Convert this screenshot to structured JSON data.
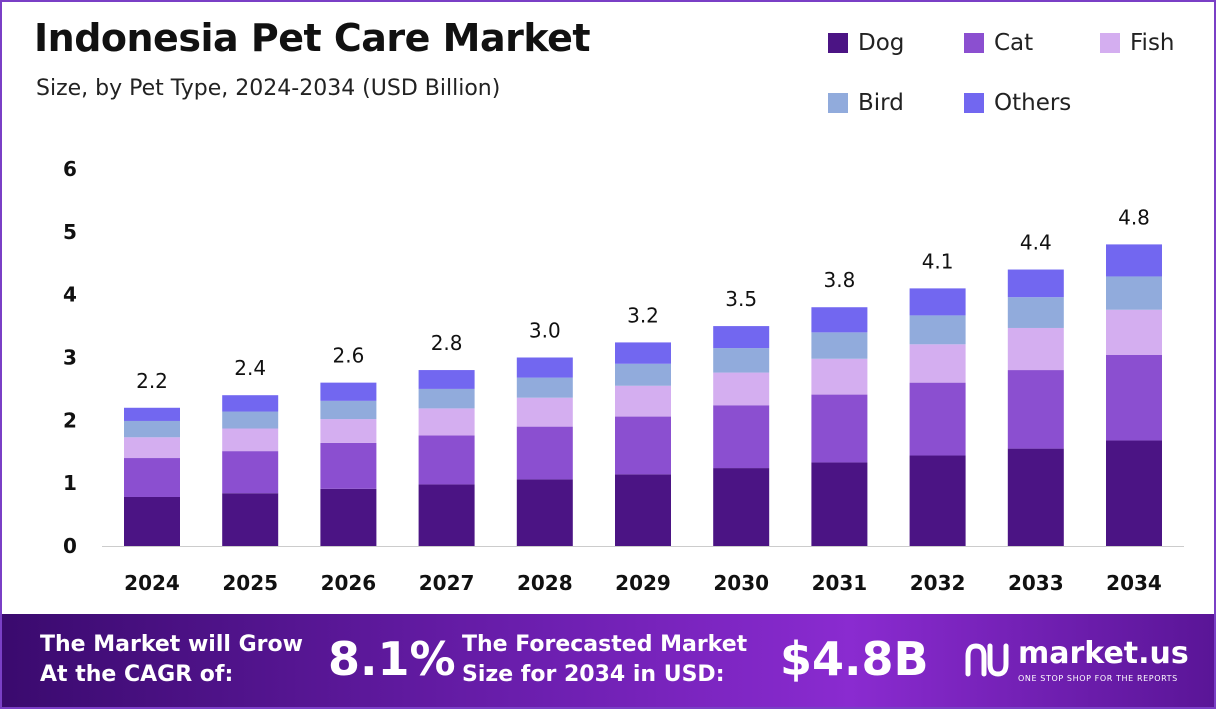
{
  "header": {
    "title": "Indonesia Pet Care Market",
    "subtitle": "Size, by Pet Type, 2024-2034 (USD Billion)"
  },
  "legend": [
    {
      "name": "Dog",
      "color": "#4b1484"
    },
    {
      "name": "Cat",
      "color": "#8b4fd0"
    },
    {
      "name": "Fish",
      "color": "#d4aef0"
    },
    {
      "name": "Bird",
      "color": "#91abdc"
    },
    {
      "name": "Others",
      "color": "#7267f0"
    }
  ],
  "chart_data": {
    "type": "bar",
    "stacked": true,
    "categories": [
      "2024",
      "2025",
      "2026",
      "2027",
      "2028",
      "2029",
      "2030",
      "2031",
      "2032",
      "2033",
      "2034"
    ],
    "totals": [
      "2.2",
      "2.4",
      "2.6",
      "2.8",
      "3.0",
      "3.2",
      "3.5",
      "3.8",
      "4.1",
      "4.4",
      "4.8"
    ],
    "series": [
      {
        "name": "Dog",
        "color": "#4b1484",
        "values": [
          0.78,
          0.84,
          0.91,
          0.98,
          1.06,
          1.14,
          1.24,
          1.33,
          1.44,
          1.55,
          1.68
        ]
      },
      {
        "name": "Cat",
        "color": "#8b4fd0",
        "values": [
          0.62,
          0.67,
          0.73,
          0.78,
          0.84,
          0.92,
          1.0,
          1.08,
          1.16,
          1.25,
          1.36
        ]
      },
      {
        "name": "Fish",
        "color": "#d4aef0",
        "values": [
          0.33,
          0.36,
          0.38,
          0.43,
          0.46,
          0.49,
          0.52,
          0.57,
          0.61,
          0.67,
          0.72
        ]
      },
      {
        "name": "Bird",
        "color": "#91abdc",
        "values": [
          0.26,
          0.27,
          0.29,
          0.31,
          0.32,
          0.35,
          0.39,
          0.42,
          0.46,
          0.49,
          0.53
        ]
      },
      {
        "name": "Others",
        "color": "#7267f0",
        "values": [
          0.21,
          0.26,
          0.29,
          0.3,
          0.32,
          0.34,
          0.35,
          0.4,
          0.43,
          0.44,
          0.51
        ]
      }
    ],
    "yticks": [
      "0",
      "1",
      "2",
      "3",
      "4",
      "5",
      "6"
    ],
    "ylim": [
      0,
      6
    ],
    "grid": false,
    "legend_position": "top-right"
  },
  "banner": {
    "cagr_line1": "The Market will Grow",
    "cagr_line2": "At the CAGR of:",
    "cagr_value": "8.1%",
    "forecast_line1": "The Forecasted Market",
    "forecast_line2": "Size for 2034 in USD:",
    "forecast_value": "$4.8B",
    "brand_name": "market.us",
    "brand_tagline": "ONE STOP SHOP FOR THE REPORTS"
  }
}
